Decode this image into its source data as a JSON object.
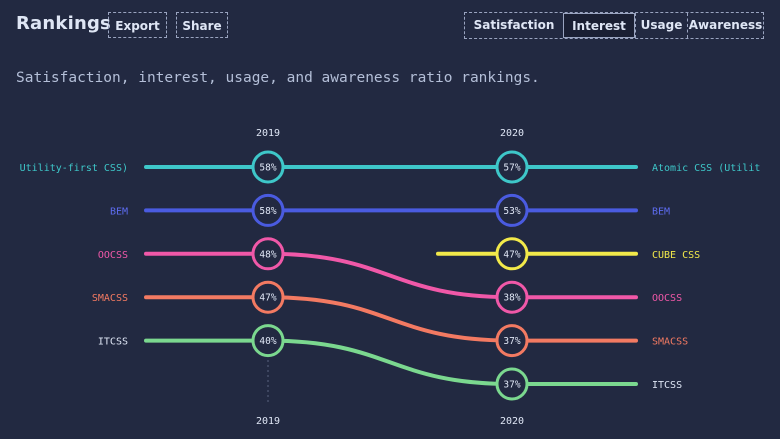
{
  "header": {
    "title": "Rankings",
    "export_label": "Export",
    "share_label": "Share",
    "tabs": [
      {
        "label": "Satisfaction",
        "active": false
      },
      {
        "label": "Interest",
        "active": true
      },
      {
        "label": "Usage",
        "active": false
      },
      {
        "label": "Awareness",
        "active": false
      }
    ]
  },
  "subtitle": "Satisfaction, interest, usage, and awareness ratio rankings.",
  "chart_data": {
    "type": "line",
    "x": [
      "2019",
      "2020"
    ],
    "series": [
      {
        "name": "Utility-first CSS)",
        "color": "#3ec7c9",
        "values": [
          58,
          null
        ],
        "ranks": [
          1,
          null
        ]
      },
      {
        "name": "Atomic CSS (Utilit",
        "color": "#3ec7c9",
        "values": [
          null,
          57
        ],
        "ranks": [
          null,
          1
        ]
      },
      {
        "name": "BEM",
        "color": "#4a5be0",
        "values": [
          58,
          53
        ],
        "ranks": [
          2,
          2
        ]
      },
      {
        "name": "OOCSS",
        "color": "#f058a8",
        "values": [
          48,
          38
        ],
        "ranks": [
          3,
          4
        ]
      },
      {
        "name": "CUBE CSS",
        "color": "#f2e94a",
        "values": [
          null,
          47
        ],
        "ranks": [
          null,
          3
        ]
      },
      {
        "name": "SMACSS",
        "color": "#f37a62",
        "values": [
          47,
          37
        ],
        "ranks": [
          4,
          5
        ]
      },
      {
        "name": "ITCSS",
        "color": "#7bd88f",
        "values": [
          40,
          37
        ],
        "ranks": [
          5,
          6
        ]
      }
    ],
    "value_labels": {
      "2019": [
        "58%",
        "58%",
        "48%",
        "47%",
        "40%"
      ],
      "2020": [
        "57%",
        "53%",
        "47%",
        "38%",
        "37%",
        "37%"
      ]
    },
    "left_labels": [
      "Utility-first CSS)",
      "BEM",
      "OOCSS",
      "SMACSS",
      "ITCSS"
    ],
    "right_labels": [
      "Atomic CSS (Utilit",
      "BEM",
      "CUBE CSS",
      "OOCSS",
      "SMACSS",
      "ITCSS"
    ],
    "left_label_colors": [
      "#3ec7c9",
      "#5d6cf0",
      "#f058a8",
      "#f37a62",
      "#dfe6f5"
    ],
    "right_label_colors": [
      "#3ec7c9",
      "#5d6cf0",
      "#f2e94a",
      "#f058a8",
      "#f37a62",
      "#dfe6f5"
    ]
  }
}
